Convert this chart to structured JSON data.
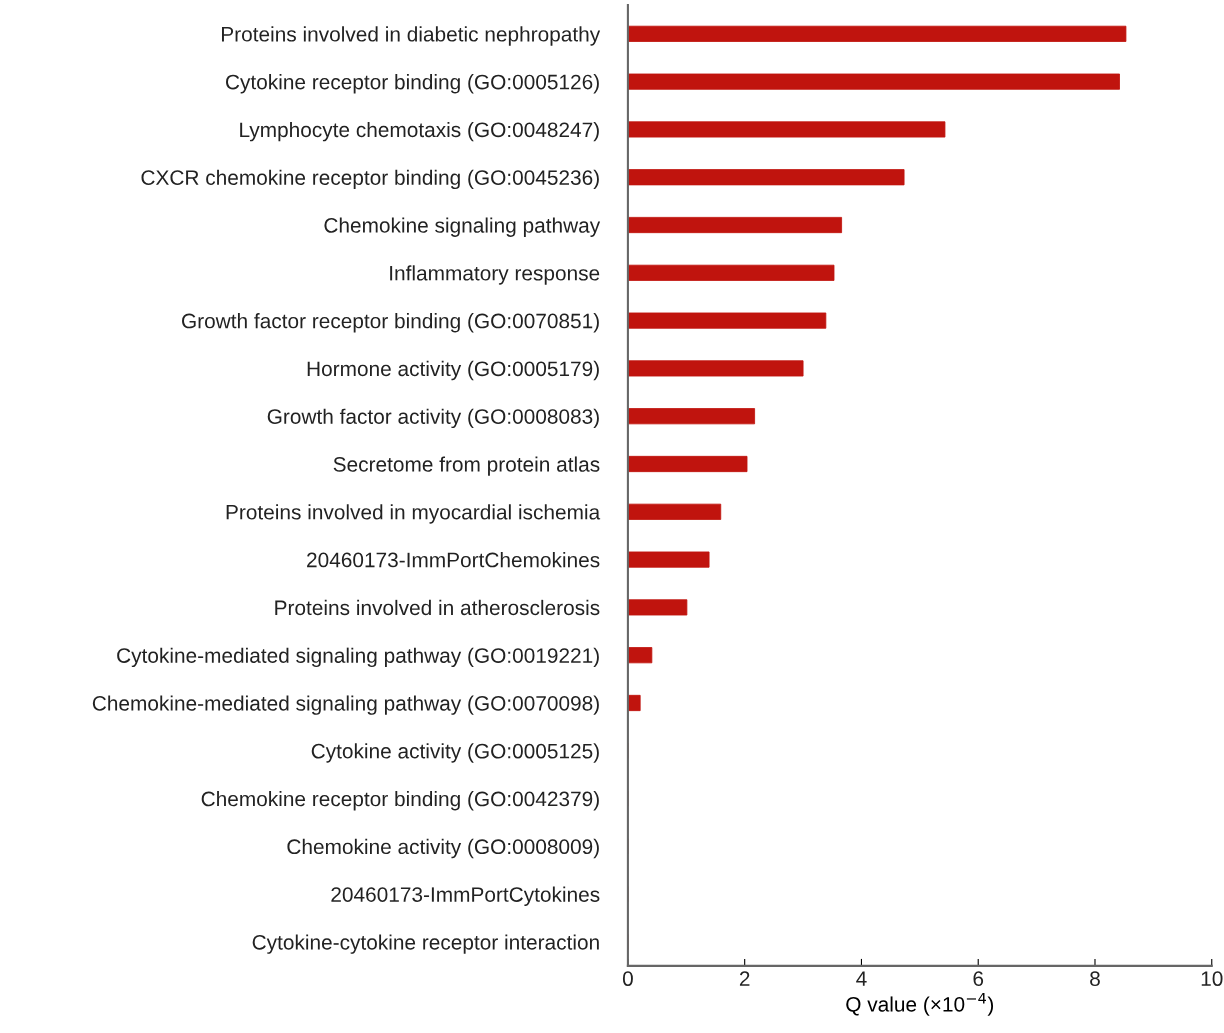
{
  "chart_data": {
    "type": "bar",
    "orientation": "horizontal",
    "categories": [
      "Proteins involved in diabetic nephropathy",
      "Cytokine receptor binding (GO:0005126)",
      "Lymphocyte chemotaxis (GO:0048247)",
      "CXCR chemokine receptor binding (GO:0045236)",
      "Chemokine signaling pathway",
      "Inflammatory response",
      "Growth factor receptor binding (GO:0070851)",
      "Hormone activity (GO:0005179)",
      "Growth factor activity (GO:0008083)",
      "Secretome from protein atlas",
      "Proteins involved in myocardial ischemia",
      "20460173-ImmPortChemokines",
      "Proteins involved in atherosclerosis",
      "Cytokine-mediated signaling pathway (GO:0019221)",
      "Chemokine-mediated signaling pathway (GO:0070098)",
      "Cytokine activity (GO:0005125)",
      "Chemokine receptor binding (GO:0042379)",
      "Chemokine activity (GO:0008009)",
      "20460173-ImmPortCytokines",
      "Cytokine-cytokine receptor interaction"
    ],
    "values": [
      8.53,
      8.42,
      5.43,
      4.73,
      3.66,
      3.53,
      3.39,
      3.0,
      2.17,
      2.04,
      1.59,
      1.39,
      1.01,
      0.41,
      0.21,
      0,
      0,
      0,
      0,
      0
    ],
    "color": "#c0140e",
    "xlabel": "Q value (×10$^{−4}$)",
    "xlim": [
      0,
      10
    ],
    "xticks": [
      0,
      2,
      4,
      6,
      8,
      10
    ],
    "grid": false
  }
}
